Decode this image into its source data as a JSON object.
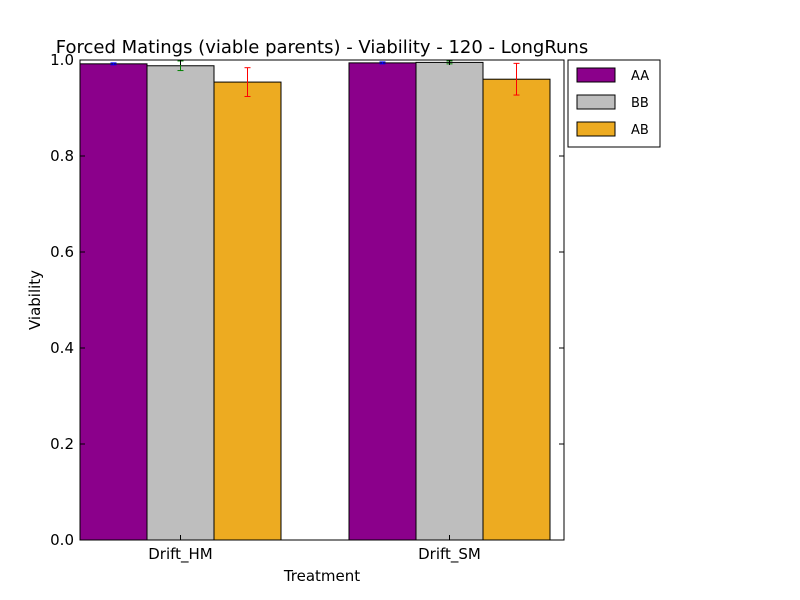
{
  "chart_data": {
    "type": "bar",
    "title": "Forced Matings (viable parents) - Viability - 120 - LongRuns",
    "xlabel": "Treatment",
    "ylabel": "Viability",
    "ylim": [
      0,
      1.0
    ],
    "yticks": [
      "0.0",
      "0.2",
      "0.4",
      "0.6",
      "0.8",
      "1.0"
    ],
    "categories": [
      "Drift_HM",
      "Drift_SM"
    ],
    "legend_position": "outside-top-right",
    "grid": false,
    "series": [
      {
        "name": "AA",
        "color": "#8b008b",
        "error_color": "#0000ff",
        "values": [
          0.992,
          0.994
        ],
        "errors": [
          0.002,
          0.002
        ]
      },
      {
        "name": "BB",
        "color": "#bebebe",
        "error_color": "#008000",
        "values": [
          0.988,
          0.995
        ],
        "errors": [
          0.01,
          0.003
        ]
      },
      {
        "name": "AB",
        "color": "#edab21",
        "error_color": "#ff0000",
        "values": [
          0.954,
          0.96
        ],
        "errors": [
          0.03,
          0.033
        ]
      }
    ]
  }
}
